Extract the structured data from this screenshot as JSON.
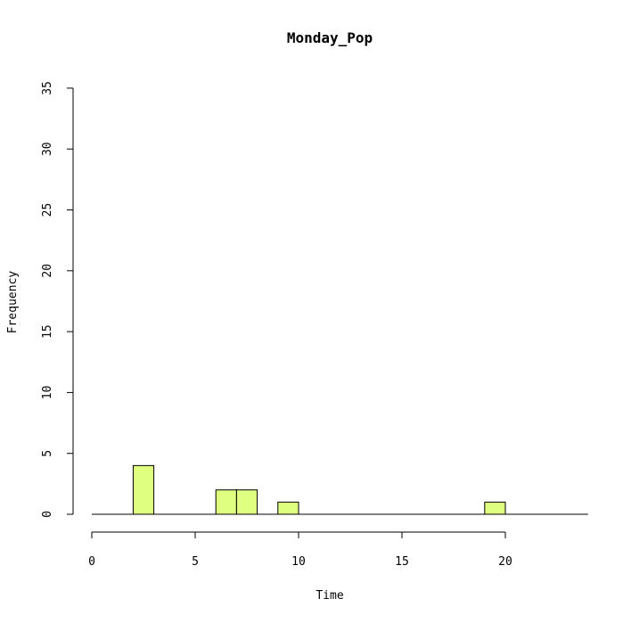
{
  "chart_data": {
    "type": "bar",
    "title": "Monday_Pop",
    "xlabel": "Time",
    "ylabel": "Frequency",
    "xlim": [
      0,
      24
    ],
    "ylim": [
      0,
      35
    ],
    "x_ticks": [
      0,
      5,
      10,
      15,
      20
    ],
    "y_ticks": [
      0,
      5,
      10,
      15,
      20,
      25,
      30,
      35
    ],
    "bin_width": 1,
    "bins": [
      {
        "start": 2,
        "end": 3,
        "count": 4
      },
      {
        "start": 6,
        "end": 7,
        "count": 2
      },
      {
        "start": 7,
        "end": 8,
        "count": 2
      },
      {
        "start": 9,
        "end": 10,
        "count": 1
      },
      {
        "start": 19,
        "end": 20,
        "count": 1
      }
    ],
    "bar_color": "#dfff80",
    "grid": false,
    "legend": "none"
  }
}
